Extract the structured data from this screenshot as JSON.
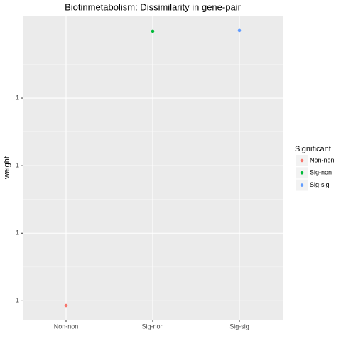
{
  "chart_data": {
    "type": "scatter",
    "title": "Biotinmetabolism: Dissimilarity in gene-pair",
    "y_label": "weight",
    "categories": [
      "Non-non",
      "Sig-non",
      "Sig-sig"
    ],
    "legend_title": "Significant",
    "series": [
      {
        "name": "Non-non",
        "color": "#F8766D",
        "values": [
          0.9999993,
          null,
          null
        ]
      },
      {
        "name": "Sig-non",
        "color": "#00BA38",
        "values": [
          null,
          1.0000399,
          null
        ]
      },
      {
        "name": "Sig-sig",
        "color": "#619CFF",
        "values": [
          null,
          null,
          1.00004
        ]
      }
    ],
    "ylim": [
      0.9999972,
      1.0000422
    ],
    "yticks": [
      1,
      {
        "value": 1.00001,
        "label": "1"
      },
      {
        "value": 1.00002,
        "label": "1"
      },
      {
        "value": 1.00003,
        "label": "1"
      }
    ],
    "grid": true,
    "legend": "right"
  }
}
